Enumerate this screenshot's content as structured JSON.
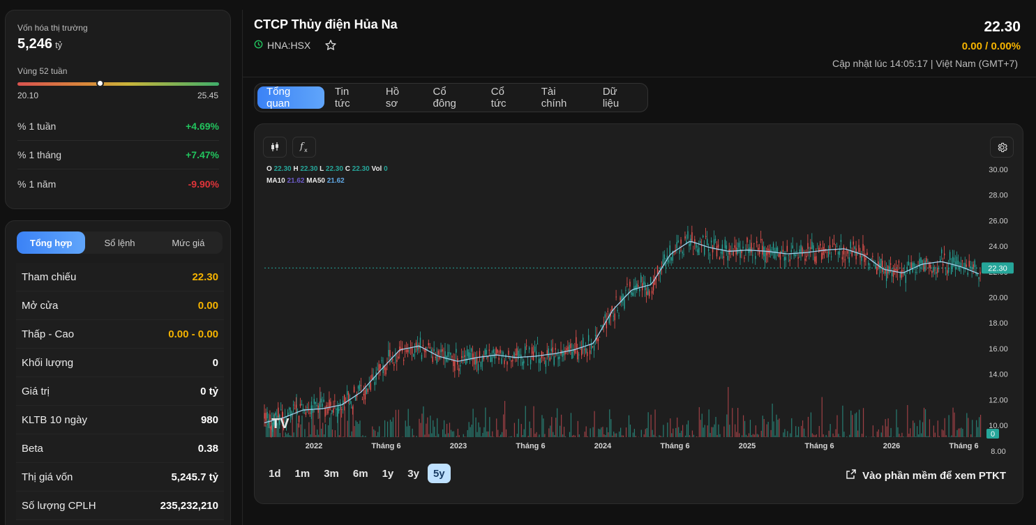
{
  "stats": {
    "market_cap_label": "Vốn hóa thị trường",
    "market_cap_value": "5,246",
    "market_cap_unit": "tỷ",
    "range_label": "Vùng 52 tuần",
    "range_low": "20.10",
    "range_high": "25.45",
    "range_position": 0.41,
    "perf": [
      {
        "label": "% 1 tuần",
        "value": "+4.69%"
      },
      {
        "label": "% 1 tháng",
        "value": "+7.47%"
      },
      {
        "label": "% 1 năm",
        "value": "-9.90%"
      }
    ]
  },
  "summary": {
    "tabs": [
      "Tổng hợp",
      "Sổ lệnh",
      "Mức giá"
    ],
    "rows": [
      {
        "label": "Tham chiếu",
        "value": "22.30"
      },
      {
        "label": "Mở cửa",
        "value": "0.00"
      },
      {
        "label": "Thấp - Cao",
        "value": "0.00 - 0.00"
      },
      {
        "label": "Khối lượng",
        "value": "0"
      },
      {
        "label": "Giá trị",
        "value": "0 tỷ"
      },
      {
        "label": "KLTB 10 ngày",
        "value": "980"
      },
      {
        "label": "Beta",
        "value": "0.38"
      },
      {
        "label": "Thị giá vốn",
        "value": "5,245.7 tỷ"
      },
      {
        "label": "Số lượng CPLH",
        "value": "235,232,210"
      }
    ]
  },
  "header": {
    "title": "CTCP Thủy điện Hủa Na",
    "ticker": "HNA:HSX",
    "price": "22.30",
    "change": "0.00 / 0.00%",
    "updated": "Cập nhật lúc 14:05:17 | Việt Nam (GMT+7)"
  },
  "tabs": [
    "Tổng quan",
    "Tin tức",
    "Hồ sơ",
    "Cổ đông",
    "Cổ tức",
    "Tài chính",
    "Dữ liệu"
  ],
  "chart": {
    "ohlc": {
      "o": "22.30",
      "h": "22.30",
      "l": "22.30",
      "c": "22.30",
      "vol": "0"
    },
    "ma10": "21.62",
    "ma50": "21.62",
    "ranges": [
      "1d",
      "1m",
      "3m",
      "6m",
      "1y",
      "3y",
      "5y"
    ],
    "active_range": "5y",
    "ptkt_label": "Vào phần mềm để xem PTKT",
    "logo_text": "TV"
  },
  "chart_data": {
    "type": "line",
    "y_ticks": [
      "30.00",
      "28.00",
      "26.00",
      "24.00",
      "22.00",
      "20.00",
      "18.00",
      "16.00",
      "14.00",
      "12.00",
      "10.00",
      "8.00"
    ],
    "ylim": [
      8,
      30
    ],
    "x_ticks": [
      "2022",
      "Tháng 6",
      "2023",
      "Tháng 6",
      "2024",
      "Tháng 6",
      "2025",
      "Tháng 6",
      "2026",
      "Tháng 6"
    ],
    "last_price": "22.30",
    "last_volume": "0",
    "series": [
      {
        "name": "MA50",
        "values": [
          10.2,
          10.6,
          11.2,
          11.3,
          11.6,
          12.6,
          14.3,
          15.9,
          16.2,
          15.4,
          15.0,
          15.3,
          15.5,
          15.3,
          15.4,
          15.6,
          15.9,
          16.4,
          19.0,
          20.6,
          21.0,
          23.4,
          24.4,
          23.9,
          23.6,
          23.7,
          23.6,
          23.4,
          23.5,
          23.7,
          23.8,
          23.3,
          22.2,
          21.9,
          22.6,
          22.8,
          22.4,
          21.8
        ]
      }
    ]
  }
}
